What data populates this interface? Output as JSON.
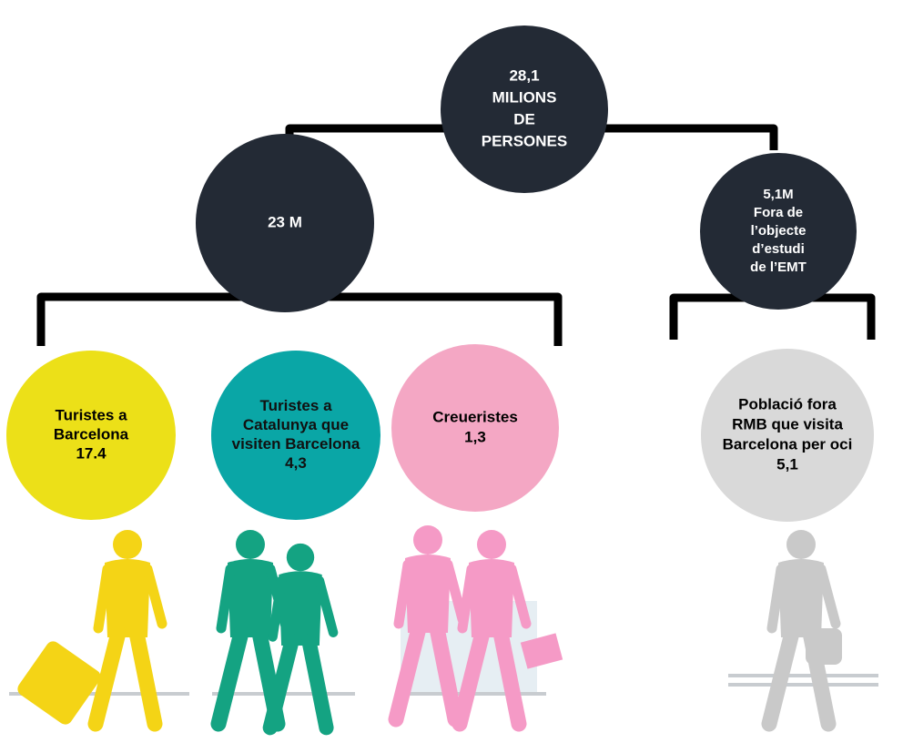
{
  "nodes": [
    {
      "lines": [
        "28,1",
        "MILIONS",
        "DE",
        "PERSONES"
      ]
    },
    {
      "lines": [
        "23 M"
      ]
    },
    {
      "lines": [
        "5,1M",
        "Fora de",
        "l’objecte",
        "d’estudi",
        "de l’EMT"
      ]
    },
    {
      "lines": [
        "Turistes a",
        "Barcelona",
        "17.4"
      ]
    },
    {
      "lines": [
        "Turistes a",
        "Catalunya que",
        "visiten Barcelona",
        "4,3"
      ]
    },
    {
      "lines": [
        "Creueristes",
        "1,3"
      ]
    },
    {
      "lines": [
        "Població fora",
        "RMB que visita",
        "Barcelona per oci",
        "5,1"
      ]
    }
  ]
}
